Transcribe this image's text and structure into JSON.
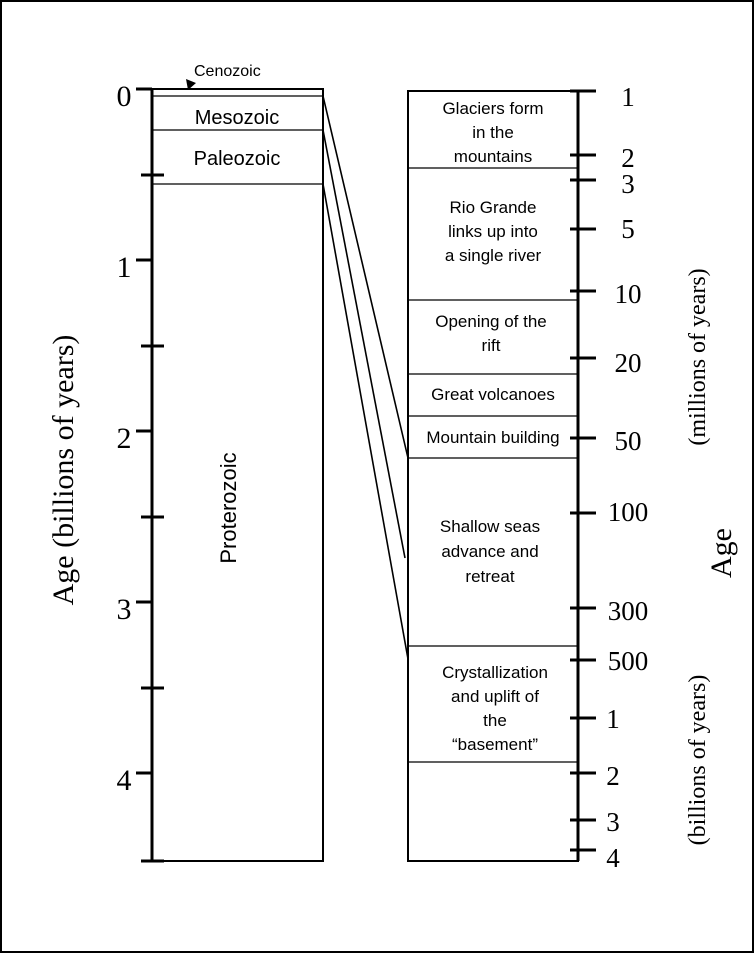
{
  "left_column": {
    "axis_label": "Age (billions of years)",
    "ticks": [
      {
        "label": "0",
        "value": 0
      },
      {
        "label": "1",
        "value": 1
      },
      {
        "label": "2",
        "value": 2
      },
      {
        "label": "3",
        "value": 3
      },
      {
        "label": "4",
        "value": 4
      }
    ],
    "eras": [
      {
        "name": "Cenozoic"
      },
      {
        "name": "Mesozoic"
      },
      {
        "name": "Paleozoic"
      },
      {
        "name": "Proterozoic"
      }
    ]
  },
  "right_column": {
    "axis_label": "Age",
    "upper_unit": "(millions of years)",
    "lower_unit": "(billions of years)",
    "upper_ticks": [
      "1",
      "2",
      "3",
      "5",
      "10",
      "20",
      "50",
      "100",
      "300",
      "500"
    ],
    "lower_ticks": [
      "1",
      "2",
      "3",
      "4"
    ],
    "events": [
      {
        "lines": [
          "Glaciers form",
          "in the",
          "mountains"
        ]
      },
      {
        "lines": [
          "Rio Grande",
          "links up into",
          "a single river"
        ]
      },
      {
        "lines": [
          "Opening of the",
          "rift"
        ]
      },
      {
        "lines": [
          "Great volcanoes"
        ]
      },
      {
        "lines": [
          "Mountain building"
        ]
      },
      {
        "lines": [
          "Shallow seas",
          "advance and",
          "retreat"
        ]
      },
      {
        "lines": [
          "Crystallization",
          "and uplift of",
          "the",
          "“basement”"
        ]
      }
    ]
  }
}
